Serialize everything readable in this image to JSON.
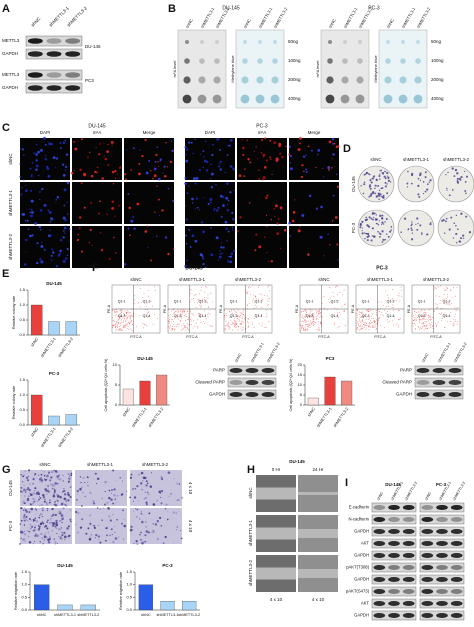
{
  "panels": {
    "A": {
      "label": "A",
      "lanes": [
        "shNC",
        "shMETTL3-1",
        "shMETTL3-2"
      ],
      "blots": [
        {
          "rows": [
            "METTL3",
            "GAPDH"
          ],
          "cell_line": "DU-145"
        },
        {
          "rows": [
            "METTL3",
            "GAPDH"
          ],
          "cell_line": "PC3"
        }
      ]
    },
    "B": {
      "label": "B",
      "cell_lines": [
        "DU-145",
        "PC-3"
      ],
      "lanes": [
        "shNC",
        "shMETTL3-1",
        "shMETTL3-2"
      ],
      "stains": [
        "m⁶A level",
        "Methylene blue"
      ],
      "amounts": [
        "50ng",
        "100ng",
        "200ng",
        "400ng"
      ]
    },
    "C": {
      "label": "C",
      "cell_lines": [
        "DU-145",
        "PC-3"
      ],
      "channels": [
        "DAPI",
        "m⁶A",
        "Merge"
      ],
      "rows": [
        "shNC",
        "shMETTL3-1",
        "shMETTL3-2"
      ]
    },
    "D": {
      "label": "D",
      "columns": [
        "shNC",
        "shMETTL3-1",
        "shMETTL3-2"
      ],
      "rows": [
        "DU-145",
        "PC-3"
      ]
    },
    "E": {
      "label": "E"
    },
    "F": {
      "label": "F",
      "cell_lines": [
        "DU-145",
        "PC-3"
      ],
      "columns": [
        "shNC",
        "shMETTL3-1",
        "shMETTL3-2"
      ],
      "quadrants": [
        "Q1-1",
        "Q1-2",
        "Q1-3",
        "Q1-4"
      ],
      "y_axis": "PE-A",
      "x_axis": "FITC-A",
      "blot_rows": [
        "PARP",
        "Cleaved PARP",
        "GAPDH"
      ]
    },
    "G": {
      "label": "G",
      "columns": [
        "shNC",
        "shMETTL3-1",
        "shMETTL3-2"
      ],
      "rows": [
        "DU-145",
        "PC-3"
      ],
      "magnification": "4 x 10"
    },
    "H": {
      "label": "H",
      "cell_line": "DU-145",
      "times": [
        "0 Hr",
        "24 Hr"
      ],
      "rows": [
        "shNC",
        "shMETTL3-1",
        "shMETTL3-2"
      ],
      "magnification": "4 x 10"
    },
    "I": {
      "label": "I",
      "cell_lines": [
        "DU-145",
        "PC-3"
      ],
      "lanes": [
        "shNC",
        "shMETTL3-1",
        "shMETTL3-2"
      ],
      "rows": [
        "E-cadherin",
        "N-cadherin",
        "GAPDH",
        "AKT",
        "GAPDH",
        "pAKT(T308)",
        "GAPDH",
        "pAKT(S473)",
        "AKT",
        "GAPDH"
      ]
    }
  },
  "chart_data": [
    {
      "type": "bar",
      "title": "DU-145",
      "ylabel": "Relative colony rate",
      "categories": [
        "shNC",
        "shMETTL3-1",
        "shMETTL3-2"
      ],
      "values": [
        1.0,
        0.45,
        0.45
      ],
      "colors": [
        "#e8403c",
        "#a9d4f5",
        "#a9d4f5"
      ],
      "ylim": [
        0,
        1.5
      ],
      "yticks": [
        {
          "value": 0,
          "label": "0.0"
        },
        0.5,
        {
          "value": 1,
          "label": "1.0"
        },
        1.5
      ]
    },
    {
      "type": "bar",
      "title": "PC-3",
      "ylabel": "Relative colony rate",
      "categories": [
        "shNC",
        "shMETTL3-1",
        "shMETTL3-2"
      ],
      "values": [
        1.0,
        0.3,
        0.35
      ],
      "colors": [
        "#e8403c",
        "#a9d4f5",
        "#a9d4f5"
      ],
      "ylim": [
        0,
        1.5
      ],
      "yticks": [
        {
          "value": 0,
          "label": "0.0"
        },
        0.5,
        {
          "value": 1,
          "label": "1.0"
        },
        1.5
      ]
    },
    {
      "type": "bar",
      "title": "DU-145",
      "ylabel": "Cell apoptosis (Q2+Q4 cells %)",
      "categories": [
        "shNC",
        "shMETTL3-1",
        "shMETTL3-2"
      ],
      "values": [
        4,
        6,
        7.5
      ],
      "colors": [
        "#fde3e1",
        "#e8403c",
        "#f08a80"
      ],
      "ylim": [
        0,
        10
      ],
      "yticks": [
        0,
        5,
        10
      ]
    },
    {
      "type": "bar",
      "title": "PC3",
      "ylabel": "Cell apoptosis (Q2+Q4 cells %)",
      "categories": [
        "shNC",
        "shMETTL3-1",
        "shMETTL3-2"
      ],
      "values": [
        3.5,
        14,
        12
      ],
      "colors": [
        "#fde3e1",
        "#e8403c",
        "#f08a80"
      ],
      "ylim": [
        0,
        20
      ],
      "yticks": [
        0,
        5,
        10,
        15,
        20
      ]
    },
    {
      "type": "bar",
      "title": "DU-145",
      "ylabel": "Relative migration rate",
      "categories": [
        "shNC",
        "shMETTL3-1",
        "shMETTL3-2"
      ],
      "values": [
        1.0,
        0.2,
        0.2
      ],
      "colors": [
        "#2a5ee8",
        "#a9d4f5",
        "#a9d4f5"
      ],
      "ylim": [
        0,
        1.5
      ],
      "yticks": [
        {
          "value": 0,
          "label": "0.0"
        },
        0.5,
        {
          "value": 1,
          "label": "1.0"
        },
        1.5
      ]
    },
    {
      "type": "bar",
      "title": "PC-3",
      "ylabel": "Relative migration rate",
      "categories": [
        "shNC",
        "shMETTL3-1",
        "shMETTL3-2"
      ],
      "values": [
        1.0,
        0.35,
        0.35
      ],
      "colors": [
        "#2a5ee8",
        "#a9d4f5",
        "#a9d4f5"
      ],
      "ylim": [
        0,
        1.5
      ],
      "yticks": [
        {
          "value": 0,
          "label": "0.0"
        },
        0.5,
        {
          "value": 1,
          "label": "1.0"
        },
        1.5
      ]
    }
  ]
}
